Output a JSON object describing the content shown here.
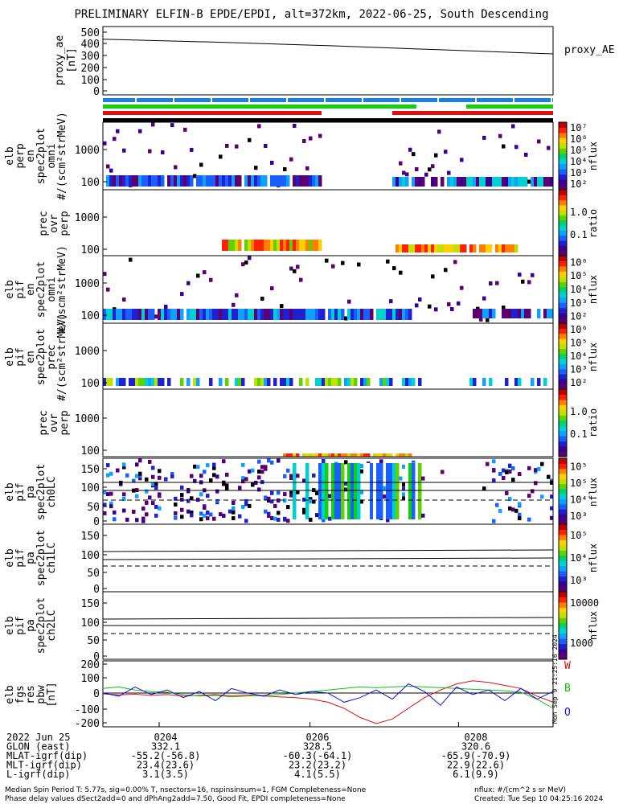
{
  "title": "PRELIMINARY ELFIN-B EPDE/EPDI, alt=372km, 2022-06-25, South Descending",
  "chart_data": [
    {
      "panel": "proxy_ae",
      "type": "line",
      "ylabel": "proxy_ae [nT]",
      "legend": "proxy_AE",
      "yticks": [
        "500",
        "400",
        "300",
        "200",
        "100",
        "0"
      ],
      "ylim": [
        0,
        500
      ],
      "series": [
        {
          "name": "proxy_AE",
          "x": [
            0,
            0.25,
            0.5,
            0.75,
            1.0
          ],
          "values": [
            440,
            415,
            385,
            350,
            315
          ]
        }
      ]
    },
    {
      "panel": "elb-perp-en-spec",
      "type": "heatmap",
      "ylabel": [
        "elb",
        "perp",
        "en",
        "spec2plot",
        "omni",
        "#/(scm²strMeV)"
      ],
      "yticks": [
        "1000",
        "100"
      ],
      "colorbar": {
        "label": "nflux",
        "ticks": [
          "10⁷",
          "10⁶",
          "10⁵",
          "10⁴",
          "10³",
          "10²"
        ]
      }
    },
    {
      "panel": "prec-ovr-perp-1",
      "type": "heatmap",
      "ylabel": [
        "prec",
        "ovr",
        "perp"
      ],
      "yticks": [
        "1000",
        "100"
      ],
      "colorbar": {
        "label": "ratio",
        "ticks": [
          "1.0",
          "0.1"
        ]
      }
    },
    {
      "panel": "elb-pif-en-spec",
      "type": "heatmap",
      "ylabel": [
        "elb",
        "pif",
        "en",
        "spec2plot",
        "omni",
        "#/(scm²strMeV)"
      ],
      "yticks": [
        "1000",
        "100"
      ],
      "colorbar": {
        "label": "nflux",
        "ticks": [
          "10⁶",
          "10⁵",
          "10⁴",
          "10³",
          "10²"
        ]
      }
    },
    {
      "panel": "elb-pif-en-prec",
      "type": "heatmap",
      "ylabel": [
        "elb",
        "pif",
        "en",
        "spec2plot",
        "prec",
        "#/(scm²strMeV)"
      ],
      "yticks": [
        "1000",
        "100"
      ],
      "colorbar": {
        "label": "nflux",
        "ticks": [
          "10⁶",
          "10⁵",
          "10⁴",
          "10³",
          "10²"
        ]
      }
    },
    {
      "panel": "prec-ovr-perp-2",
      "type": "heatmap",
      "ylabel": [
        "prec",
        "ovr",
        "perp"
      ],
      "yticks": [
        "1000",
        "100"
      ],
      "colorbar": {
        "label": "ratio",
        "ticks": [
          "1.0",
          "0.1"
        ]
      }
    },
    {
      "panel": "elb-pif-pa-ch0LC",
      "type": "heatmap",
      "ylabel": [
        "elb",
        "pif",
        "pa",
        "spec2plot",
        "ch0LC"
      ],
      "yticks": [
        "150",
        "100",
        "50",
        "0"
      ],
      "colorbar": {
        "label": "nflux",
        "ticks": [
          "10⁵",
          "10⁵",
          "10⁴",
          "10³"
        ]
      }
    },
    {
      "panel": "elb-pif-pa-ch1LC",
      "type": "heatmap",
      "ylabel": [
        "elb",
        "pif",
        "pa",
        "spec2plot",
        "ch1LC"
      ],
      "yticks": [
        "150",
        "100",
        "50",
        "0"
      ],
      "colorbar": {
        "label": "nflux",
        "ticks": [
          "10⁵",
          "10⁴",
          "10³"
        ]
      }
    },
    {
      "panel": "elb-pif-pa-ch2LC",
      "type": "heatmap",
      "ylabel": [
        "elb",
        "pif",
        "pa",
        "spec2plot",
        "ch2LC"
      ],
      "yticks": [
        "150",
        "100",
        "50",
        "0"
      ],
      "colorbar": {
        "label": "nflux",
        "ticks": [
          "10000",
          "1000"
        ]
      }
    },
    {
      "panel": "elb-fgs-res-pbw",
      "type": "line",
      "ylabel": [
        "elb",
        "fgs",
        "res",
        "pbw",
        "[nT]"
      ],
      "yticks": [
        "200",
        "100",
        "0",
        "-100",
        "-200"
      ],
      "ylim": [
        -200,
        200
      ],
      "legend": [
        "W",
        "B",
        "O"
      ],
      "series": [
        {
          "name": "W",
          "values": [
            -5,
            -12,
            -8,
            -15,
            -10,
            -20,
            -15,
            -10,
            -18,
            -12,
            -20,
            -25,
            -30,
            -40,
            -60,
            -100,
            -160,
            -200,
            -170,
            -100,
            -30,
            20,
            60,
            80,
            70,
            50,
            30,
            -20,
            -60
          ]
        },
        {
          "name": "B",
          "values": [
            30,
            40,
            20,
            10,
            5,
            -10,
            -20,
            -15,
            -25,
            -20,
            -15,
            -10,
            0,
            10,
            20,
            30,
            40,
            35,
            40,
            45,
            40,
            35,
            30,
            25,
            20,
            15,
            5,
            -40,
            -100
          ]
        },
        {
          "name": "O",
          "values": [
            0,
            -20,
            40,
            -10,
            20,
            -30,
            10,
            -50,
            30,
            0,
            -20,
            20,
            -10,
            10,
            0,
            -60,
            -30,
            20,
            -40,
            60,
            10,
            -80,
            40,
            -10,
            20,
            -50,
            30,
            -40,
            10
          ]
        }
      ]
    }
  ],
  "time_ticks": [
    "0204",
    "0206",
    "0208"
  ],
  "time_tick_x": [
    0.125,
    0.46,
    0.79
  ],
  "info_rows": [
    {
      "label": "2022 Jun 25",
      "values": [
        "0204",
        "0206",
        "0208"
      ]
    },
    {
      "label": "GLON (east)",
      "values": [
        "332.1",
        "328.5",
        "320.6"
      ]
    },
    {
      "label": "MLAT-igrf(dip)",
      "values": [
        "-55.2(-56.8)",
        "-60.3(-64.1)",
        "-65.9(-70.9)"
      ]
    },
    {
      "label": "MLT-igrf(dip)",
      "values": [
        "23.4(23.6)",
        "23.2(23.2)",
        "22.9(22.6)"
      ]
    },
    {
      "label": "L-igrf(dip)",
      "values": [
        "3.1(3.5)",
        "4.1(5.5)",
        "6.1(9.9)"
      ]
    }
  ],
  "footer": {
    "line1": "Median Spin Period T: 5.77s, sig=0.00% T, nsectors=16, nspinsinsum=1, FGM Completeness=None",
    "line2": "Phase delay values dSect2add=0 and dPhAng2add=7.50, Good Fit, EPDI completeness=None",
    "right1": "nflux: #/(cm^2 s sr MeV)",
    "right2": "Created: Tue Sep 10 04:25:16 2024",
    "stamp": "Mon Sep 9 21:25:16 2024"
  }
}
